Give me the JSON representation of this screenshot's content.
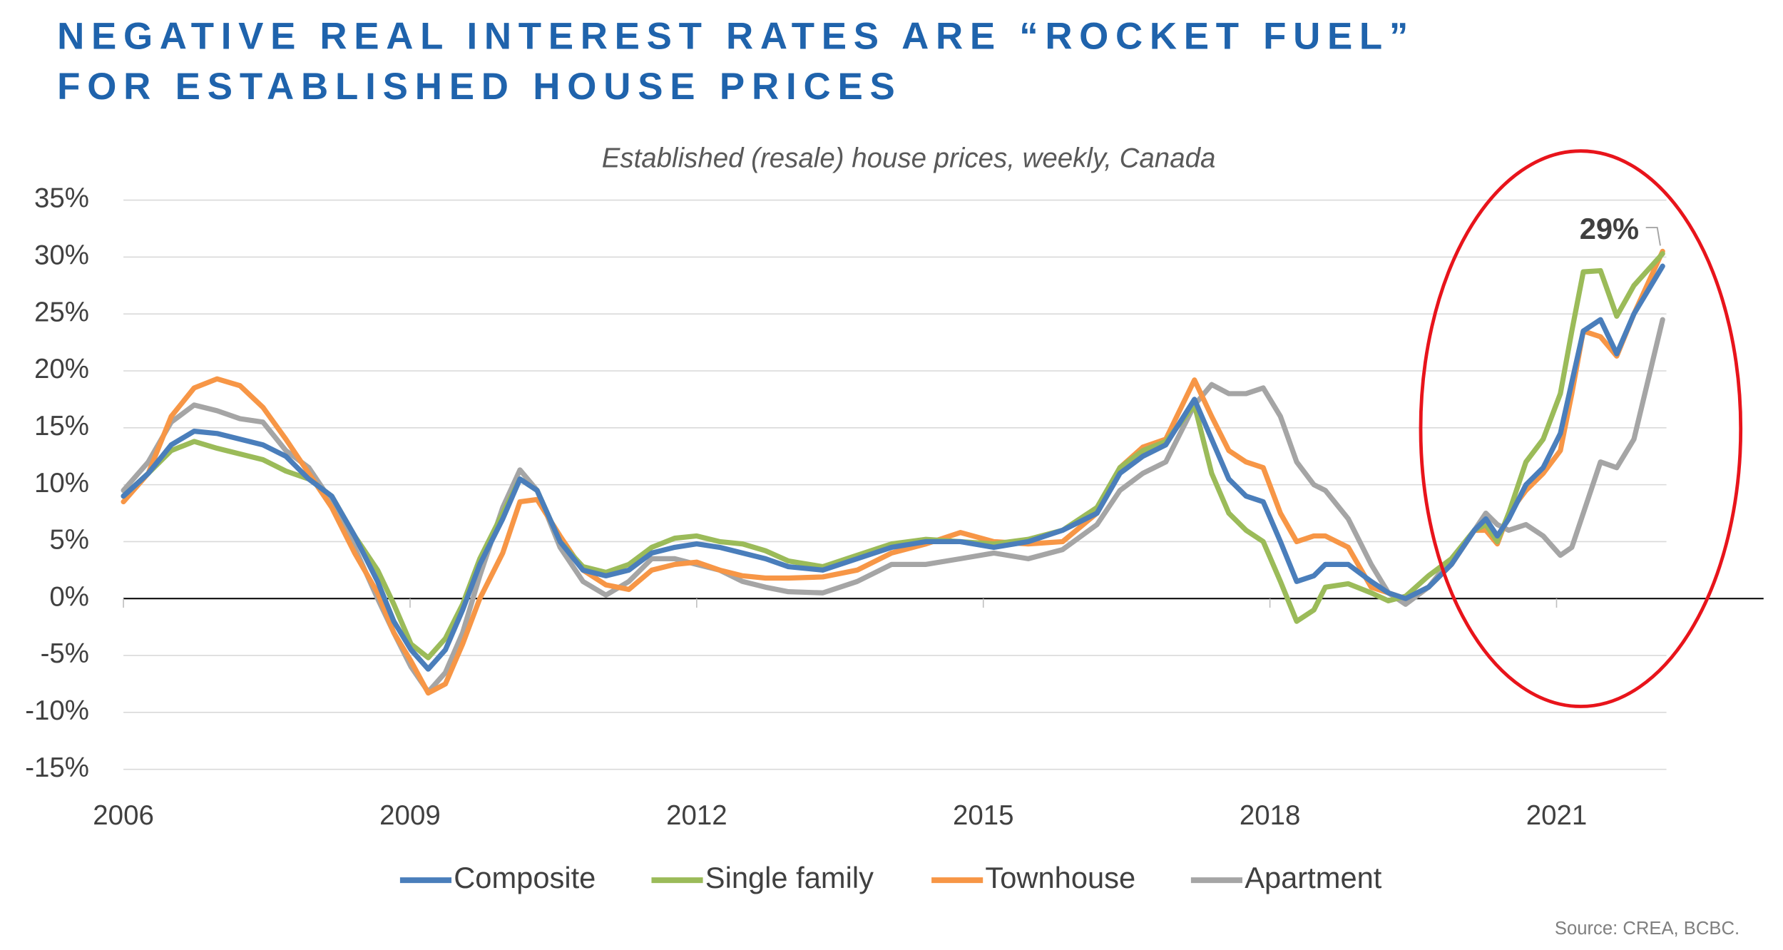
{
  "chart_data": {
    "type": "line",
    "title": [
      "NEGATIVE REAL INTEREST RATES ARE “ROCKET FUEL”",
      "FOR ESTABLISHED HOUSE PRICES"
    ],
    "subtitle": "Established (resale) house prices, weekly, Canada",
    "annotation": "29%",
    "source": "Source: CREA, BCBC.",
    "x": [
      2006.0,
      2006.26,
      2006.5,
      2006.74,
      2006.98,
      2007.22,
      2007.46,
      2007.7,
      2007.94,
      2008.18,
      2008.42,
      2008.66,
      2008.83,
      2009.01,
      2009.19,
      2009.37,
      2009.55,
      2009.73,
      2009.97,
      2010.15,
      2010.33,
      2010.57,
      2010.81,
      2011.05,
      2011.29,
      2011.53,
      2011.77,
      2012.0,
      2012.24,
      2012.48,
      2012.72,
      2012.96,
      2013.32,
      2013.68,
      2014.04,
      2014.4,
      2014.76,
      2015.11,
      2015.47,
      2015.83,
      2016.19,
      2016.43,
      2016.67,
      2016.91,
      2017.21,
      2017.39,
      2017.57,
      2017.75,
      2017.93,
      2018.11,
      2018.28,
      2018.46,
      2018.58,
      2018.82,
      2019.06,
      2019.24,
      2019.42,
      2019.66,
      2019.9,
      2020.14,
      2020.26,
      2020.38,
      2020.5,
      2020.68,
      2020.86,
      2021.04,
      2021.16,
      2021.28,
      2021.46,
      2021.63,
      2021.81,
      2022.11
    ],
    "series": [
      {
        "name": "Composite",
        "color": "#4a7ebb",
        "values": [
          9,
          11,
          13.5,
          14.7,
          14.5,
          14,
          13.5,
          12.5,
          10.5,
          9,
          5.5,
          1.5,
          -2,
          -4.5,
          -6.2,
          -4.5,
          -1,
          3,
          7,
          10.5,
          9.5,
          5,
          2.5,
          2,
          2.5,
          4,
          4.5,
          4.8,
          4.5,
          4,
          3.5,
          2.8,
          2.5,
          3.5,
          4.5,
          5,
          5,
          4.5,
          5,
          6,
          7.5,
          11,
          12.5,
          13.5,
          17.5,
          14,
          10.5,
          9,
          8.5,
          5,
          1.5,
          2,
          3,
          3,
          1.5,
          0.5,
          0,
          1,
          3,
          6,
          7,
          5.5,
          7,
          10,
          11.5,
          14.5,
          19,
          23.5,
          24.5,
          21.5,
          25,
          29.2
        ]
      },
      {
        "name": "Single family",
        "color": "#9bbb59",
        "values": [
          9,
          11,
          13,
          13.8,
          13.2,
          12.7,
          12.2,
          11.2,
          10.5,
          9,
          5.5,
          2.5,
          -0.5,
          -4,
          -5.2,
          -3.5,
          -0.5,
          3.5,
          7.5,
          10.5,
          9.5,
          5,
          2.8,
          2.3,
          3,
          4.5,
          5.3,
          5.5,
          5,
          4.8,
          4.2,
          3.3,
          2.8,
          3.8,
          4.8,
          5.2,
          5,
          4.8,
          5.2,
          6,
          8,
          11.5,
          13,
          13.8,
          17,
          11,
          7.5,
          6,
          5,
          1.5,
          -2,
          -1,
          1,
          1.3,
          0.5,
          -0.2,
          0.2,
          2,
          3.5,
          6,
          6.5,
          5,
          7.5,
          12,
          14,
          18,
          23.5,
          28.7,
          28.8,
          24.8,
          27.5,
          30.3
        ]
      },
      {
        "name": "Townhouse",
        "color": "#f79646",
        "values": [
          8.5,
          11,
          16,
          18.5,
          19.3,
          18.7,
          16.8,
          14,
          11,
          8,
          4,
          0.5,
          -3,
          -5.5,
          -8.3,
          -7.5,
          -4,
          0,
          4,
          8.5,
          8.7,
          5.5,
          2.5,
          1.2,
          0.8,
          2.5,
          3,
          3.2,
          2.5,
          2,
          1.8,
          1.8,
          1.9,
          2.5,
          4,
          4.8,
          5.8,
          5,
          4.8,
          5,
          7.5,
          11.5,
          13.3,
          14,
          19.2,
          16,
          13,
          12,
          11.5,
          7.5,
          5,
          5.5,
          5.5,
          4.5,
          1,
          0.5,
          0,
          1,
          3,
          6,
          6,
          4.8,
          7.5,
          9.5,
          11,
          13,
          18,
          23.5,
          23,
          21.3,
          25,
          30.5
        ]
      },
      {
        "name": "Apartment",
        "color": "#a5a5a5",
        "values": [
          9.5,
          12,
          15.5,
          17,
          16.5,
          15.8,
          15.5,
          13,
          11.5,
          8.5,
          4.5,
          0,
          -3,
          -6,
          -8.2,
          -6.5,
          -3,
          2,
          8,
          11.3,
          9.5,
          4.5,
          1.5,
          0.3,
          1.5,
          3.5,
          3.5,
          3,
          2.5,
          1.5,
          1,
          0.6,
          0.5,
          1.5,
          3,
          3,
          3.5,
          4,
          3.5,
          4.3,
          6.5,
          9.5,
          11,
          12,
          17,
          18.8,
          18,
          18,
          18.5,
          16,
          12,
          10,
          9.5,
          7,
          3,
          0.5,
          -0.5,
          1,
          3.5,
          6,
          7.5,
          6.5,
          6,
          6.5,
          5.5,
          3.8,
          4.5,
          7.5,
          12,
          11.5,
          14,
          24.5
        ]
      }
    ],
    "xlim": [
      2006,
      2022.15
    ],
    "xticks": [
      2006,
      2009,
      2012,
      2015,
      2018,
      2021
    ],
    "ylim": [
      -15,
      35
    ],
    "yticks": [
      {
        "value": -15,
        "label": "-15%"
      },
      {
        "value": -10,
        "label": "-10%"
      },
      {
        "value": -5,
        "label": "-5%"
      },
      {
        "value": 0,
        "label": "0%"
      },
      {
        "value": 5,
        "label": "5%"
      },
      {
        "value": 10,
        "label": "10%"
      },
      {
        "value": 15,
        "label": "15%"
      },
      {
        "value": 20,
        "label": "20%"
      },
      {
        "value": 25,
        "label": "25%"
      },
      {
        "value": 30,
        "label": "30%"
      },
      {
        "value": 35,
        "label": "35%"
      }
    ],
    "grid": true,
    "legend": "bottom"
  }
}
